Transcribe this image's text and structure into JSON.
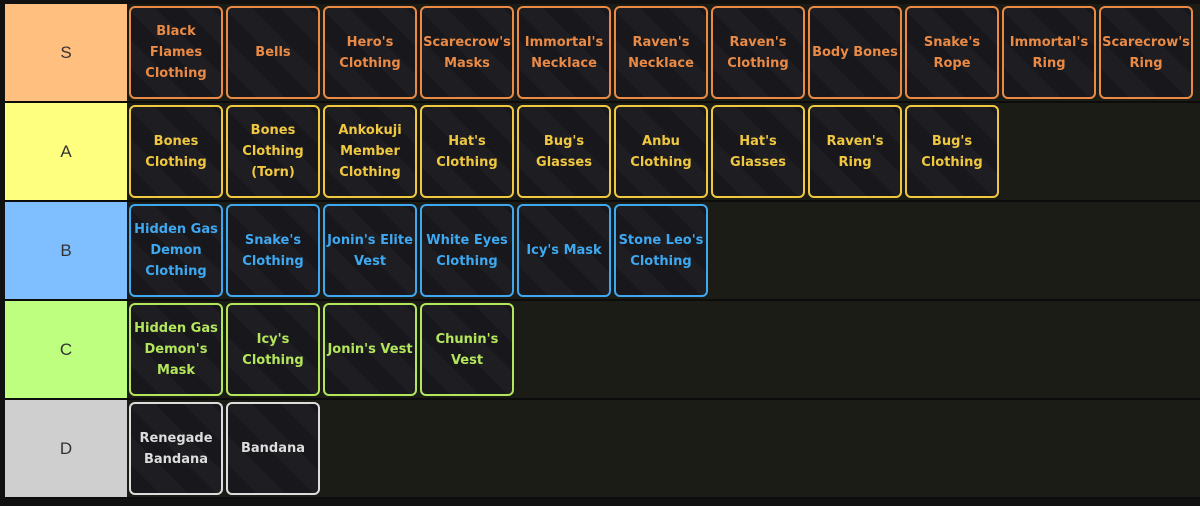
{
  "tiers": [
    {
      "label": "S",
      "color": "#ffbf7f",
      "text_color": "#ea8a45",
      "items": [
        "Black Flames Clothing",
        "Bells",
        "Hero's Clothing",
        "Scarecrow's Masks",
        "Immortal's Necklace",
        "Raven's Necklace",
        "Raven's Clothing",
        "Body Bones",
        "Snake's Rope",
        "Immortal's Ring",
        "Scarecrow's Ring"
      ]
    },
    {
      "label": "A",
      "color": "#ffff7f",
      "text_color": "#f0c840",
      "items": [
        "Bones Clothing",
        "Bones Clothing (Torn)",
        "Ankokuji Member Clothing",
        "Hat's Clothing",
        "Bug's Glasses",
        "Anbu Clothing",
        "Hat's Glasses",
        "Raven's Ring",
        "Bug's Clothing"
      ]
    },
    {
      "label": "B",
      "color": "#7fbfff",
      "text_color": "#3ea8f0",
      "items": [
        "Hidden Gas Demon Clothing",
        "Snake's Clothing",
        "Jonin's Elite Vest",
        "White Eyes Clothing",
        "Icy's Mask",
        "Stone Leo's Clothing"
      ]
    },
    {
      "label": "C",
      "color": "#bfff7f",
      "text_color": "#b4e65c",
      "items": [
        "Hidden Gas Demon's Mask",
        "Icy's Clothing",
        "Jonin's Vest",
        "Chunin's Vest"
      ]
    },
    {
      "label": "D",
      "color": "#cfcfcf",
      "text_color": "#dddddd",
      "items": [
        "Renegade Bandana",
        "Bandana"
      ]
    }
  ]
}
